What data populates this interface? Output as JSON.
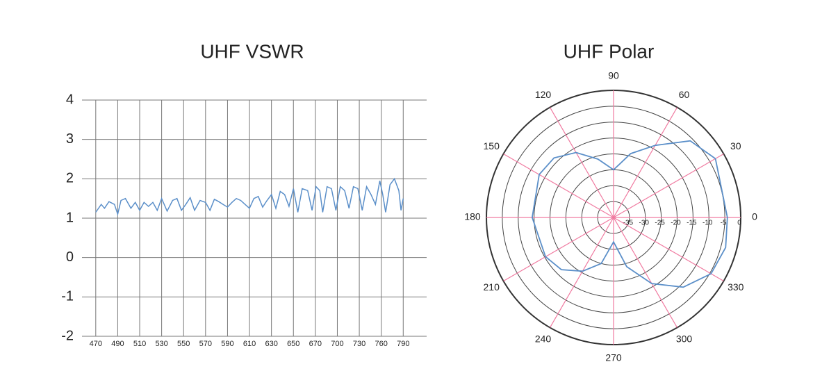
{
  "chart_data": [
    {
      "type": "line",
      "title": "UHF VSWR",
      "x": [
        470,
        475,
        478,
        482,
        487,
        490,
        493,
        497,
        502,
        506,
        510,
        514,
        518,
        522,
        526,
        530,
        535,
        540,
        544,
        548,
        552,
        556,
        560,
        565,
        570,
        574,
        578,
        582,
        586,
        590,
        594,
        598,
        602,
        606,
        610,
        614,
        618,
        622,
        626,
        630,
        634,
        638,
        642,
        646,
        650,
        654,
        658,
        663,
        667,
        671,
        676,
        680,
        686,
        692,
        698,
        704,
        710,
        716,
        722,
        728,
        734,
        740,
        746,
        752,
        758,
        762,
        766,
        772,
        778,
        784,
        787,
        790
      ],
      "values": [
        1.15,
        1.35,
        1.25,
        1.42,
        1.35,
        1.1,
        1.45,
        1.5,
        1.25,
        1.4,
        1.2,
        1.4,
        1.3,
        1.4,
        1.2,
        1.5,
        1.18,
        1.45,
        1.5,
        1.2,
        1.35,
        1.52,
        1.2,
        1.45,
        1.4,
        1.2,
        1.48,
        1.42,
        1.35,
        1.28,
        1.4,
        1.5,
        1.45,
        1.35,
        1.25,
        1.5,
        1.55,
        1.28,
        1.45,
        1.6,
        1.25,
        1.68,
        1.6,
        1.3,
        1.75,
        1.15,
        1.75,
        1.7,
        1.2,
        1.8,
        1.7,
        1.15,
        1.8,
        1.75,
        1.2,
        1.8,
        1.7,
        1.25,
        1.8,
        1.75,
        1.2,
        1.8,
        1.6,
        1.35,
        1.95,
        1.6,
        1.15,
        1.85,
        2.0,
        1.7,
        1.2,
        1.5
      ],
      "color": "#5b8fc9",
      "xlim": [
        460,
        822
      ],
      "xticks": [
        470,
        490,
        510,
        530,
        550,
        570,
        590,
        610,
        630,
        650,
        670,
        700,
        730,
        760,
        790
      ],
      "ylim": [
        -2,
        4
      ],
      "yticks": [
        -2,
        -1,
        0,
        1,
        2,
        3,
        4
      ],
      "grid": true
    },
    {
      "type": "polar",
      "title": "UHF Polar",
      "theta": [
        0,
        30,
        45,
        60,
        75,
        90,
        105,
        120,
        135,
        150,
        180,
        210,
        225,
        240,
        255,
        270,
        285,
        300,
        315,
        330,
        345,
        360
      ],
      "values": [
        -4.2,
        -3,
        -5.9,
        -13.8,
        -19.2,
        -25,
        -21,
        -16.4,
        -13.5,
        -13,
        -14.4,
        -15.3,
        -16.8,
        -20.5,
        -25,
        -32.3,
        -24,
        -16,
        -9,
        -4.6,
        -3.5,
        -4.2
      ],
      "color": "#5b8fc9",
      "rlim": [
        -40,
        0
      ],
      "rticks": [
        -35,
        -30,
        -25,
        -20,
        -15,
        -10,
        -5,
        0
      ],
      "thetaticks": [
        0,
        30,
        60,
        90,
        120,
        150,
        180,
        210,
        240,
        270,
        300,
        330
      ],
      "grid": true
    }
  ]
}
